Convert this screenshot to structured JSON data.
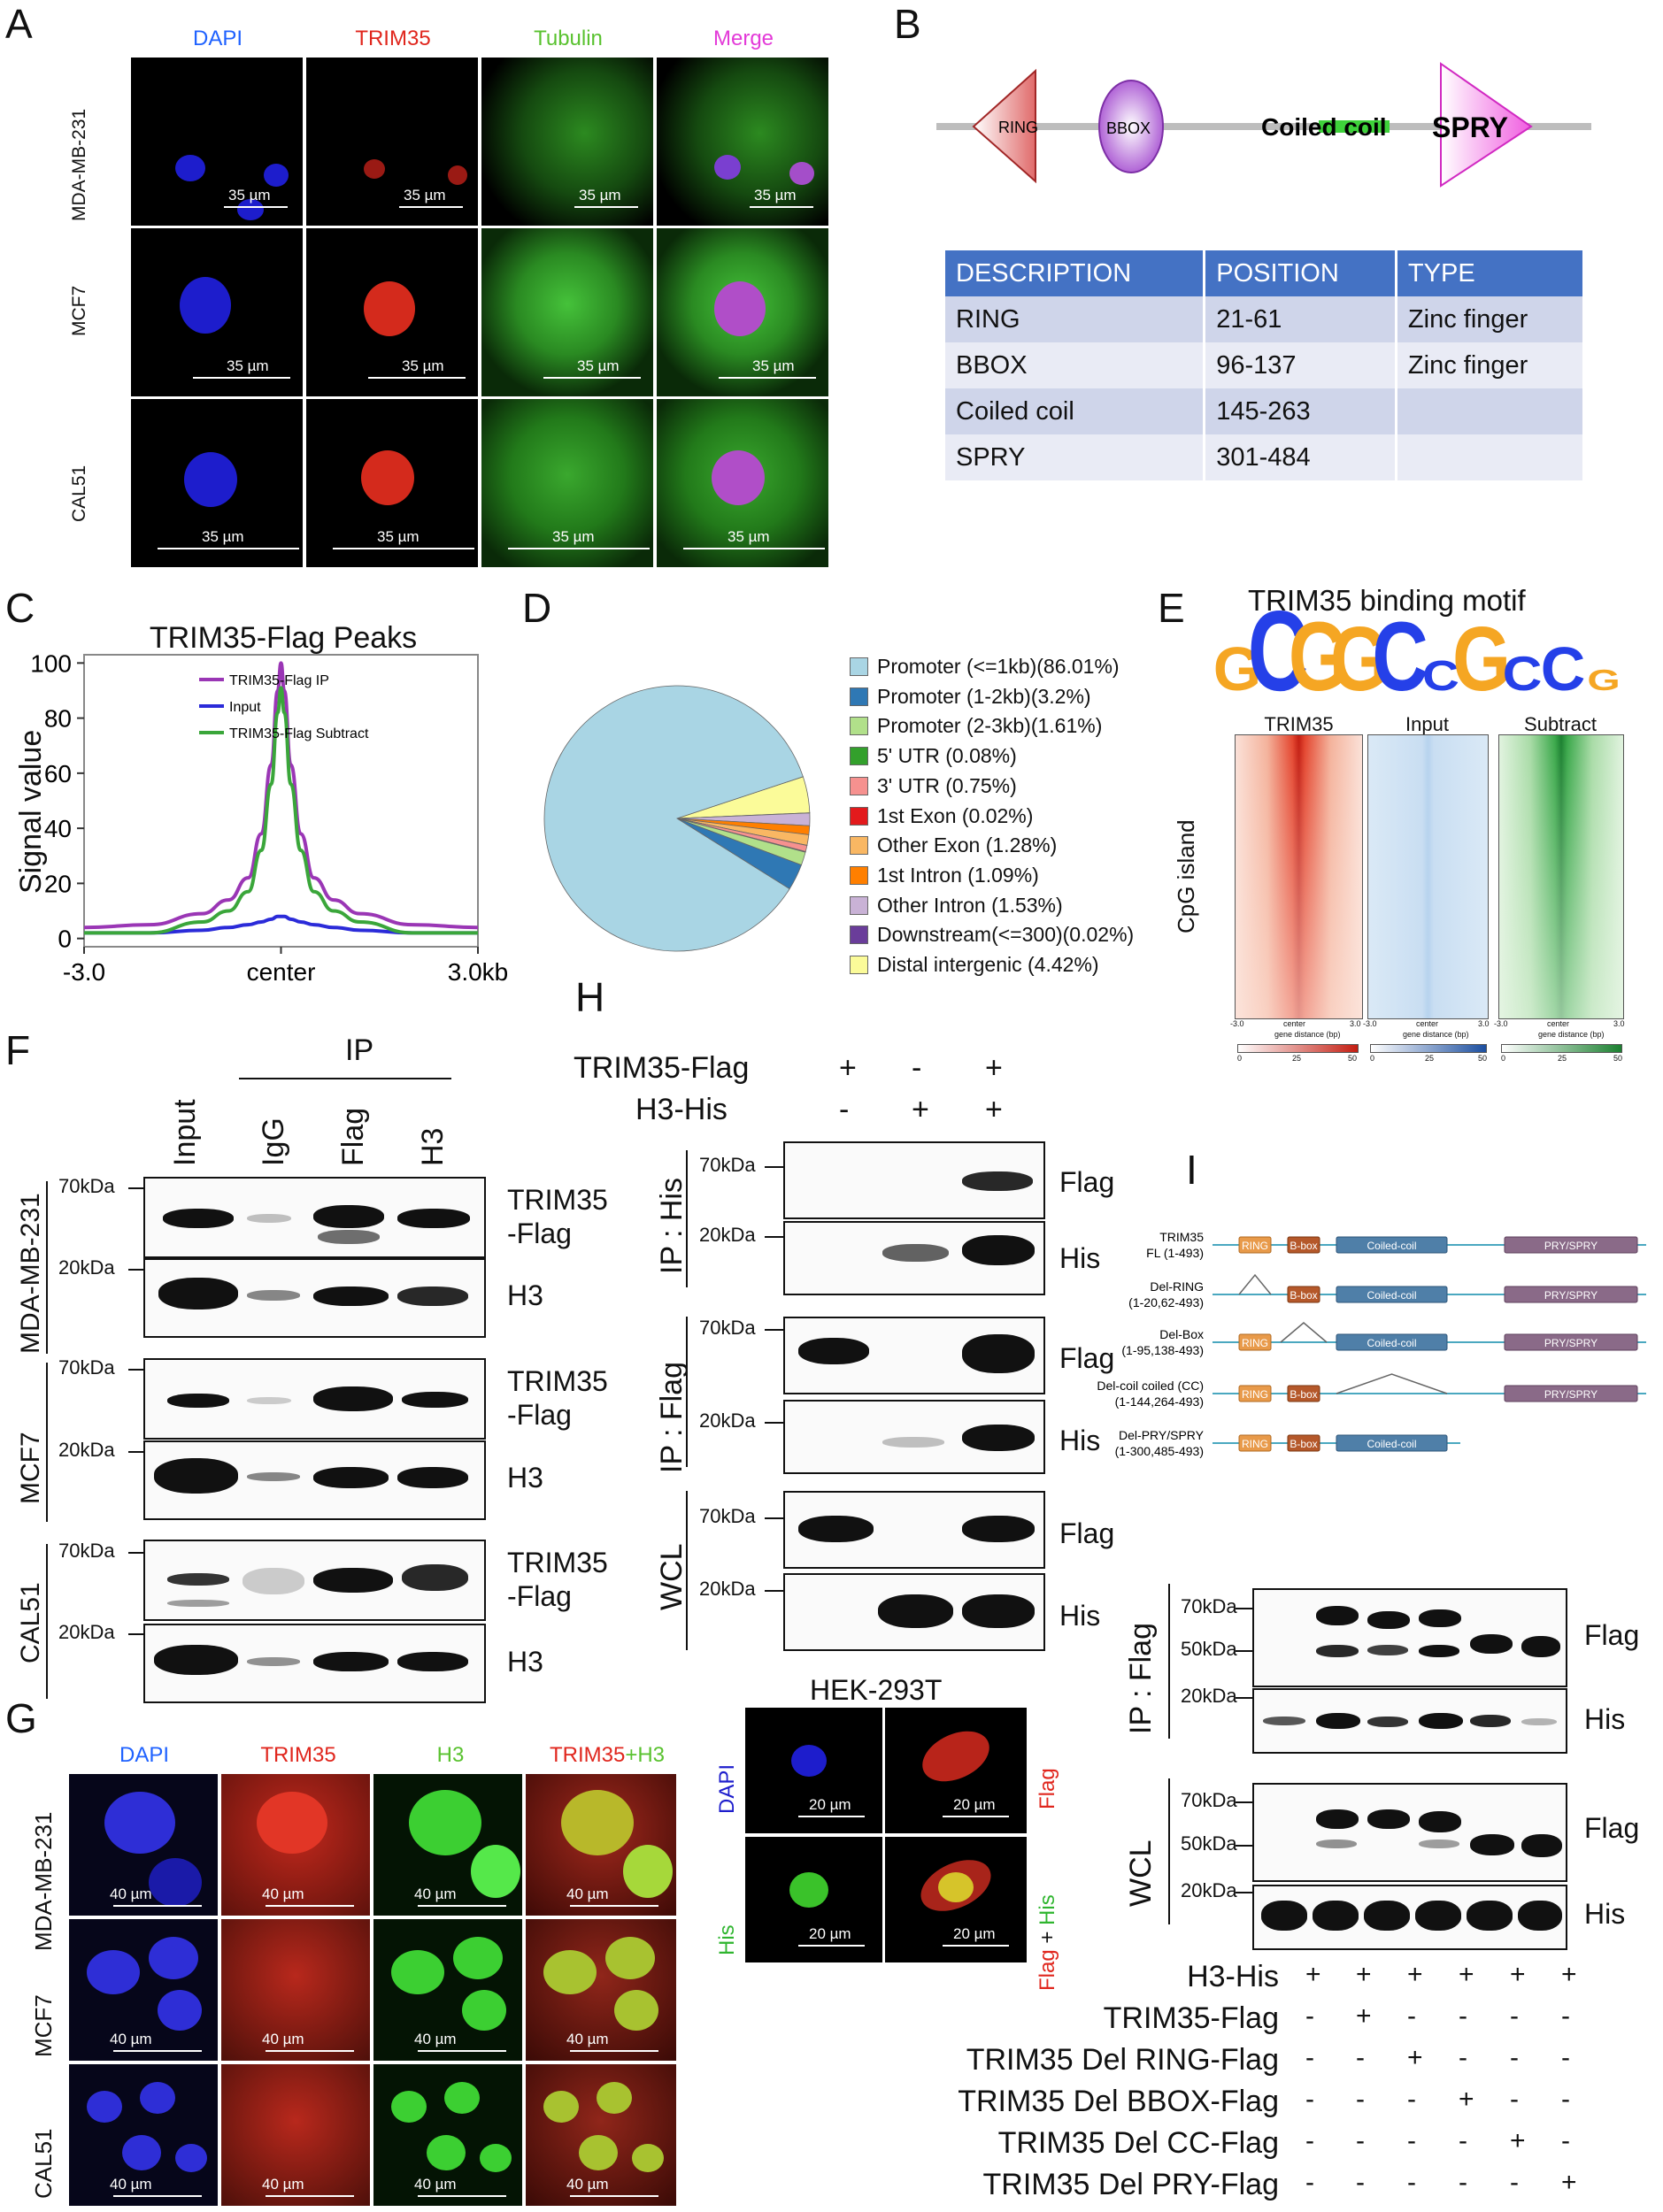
{
  "panel_letters": {
    "a": "A",
    "b": "B",
    "c": "C",
    "d": "D",
    "e": "E",
    "f": "F",
    "g": "G",
    "h": "H",
    "i": "I"
  },
  "panelA": {
    "channels": [
      "DAPI",
      "TRIM35",
      "Tubulin",
      "Merge"
    ],
    "channel_colors": [
      "#1f62ff",
      "#e0261d",
      "#59c22f",
      "#e33ad8"
    ],
    "rows": [
      "MDA-MB-231",
      "MCF7",
      "CAL51"
    ],
    "scale": "35 µm"
  },
  "panelB": {
    "domains": [
      "RING",
      "BBOX",
      "Coiled coil",
      "SPRY"
    ],
    "table": {
      "headers": [
        "DESCRIPTION",
        "POSITION",
        "TYPE"
      ],
      "rows": [
        [
          "RING",
          "21-61",
          "Zinc finger"
        ],
        [
          "BBOX",
          "96-137",
          "Zinc finger"
        ],
        [
          "Coiled coil",
          "145-263",
          ""
        ],
        [
          "SPRY",
          "301-484",
          ""
        ]
      ]
    }
  },
  "chart_data": {
    "type": "line",
    "title": "TRIM35-Flag Peaks",
    "ylabel": "Signal value",
    "ylim": [
      0,
      100
    ],
    "yticks": [
      "0",
      "20",
      "40",
      "60",
      "80",
      "100"
    ],
    "xticks": [
      "-3.0",
      "center",
      "3.0kb"
    ],
    "x": [
      -3.0,
      -2.0,
      -1.2,
      -0.8,
      -0.5,
      -0.3,
      -0.15,
      -0.05,
      0,
      0.05,
      0.15,
      0.3,
      0.5,
      0.8,
      1.2,
      2.0,
      3.0
    ],
    "series": [
      {
        "name": "TRIM35-Flag IP",
        "color": "#9a36b5",
        "values": [
          4,
          5,
          9,
          14,
          22,
          38,
          63,
          90,
          100,
          90,
          63,
          38,
          22,
          14,
          9,
          5,
          4
        ]
      },
      {
        "name": "Input",
        "color": "#2b2bd9",
        "values": [
          2,
          2,
          3,
          4,
          5,
          6,
          7,
          8,
          8,
          8,
          7,
          6,
          5,
          4,
          3,
          2,
          2
        ]
      },
      {
        "name": "TRIM35-Flag Subtract",
        "color": "#3aa63a",
        "values": [
          2,
          2,
          6,
          10,
          17,
          32,
          56,
          82,
          91,
          82,
          56,
          32,
          17,
          10,
          6,
          2,
          2
        ]
      }
    ]
  },
  "panelD": {
    "slices": [
      {
        "label": "Promoter (<=1kb)(86.01%)",
        "value": 86.01,
        "color": "#a9d5e4"
      },
      {
        "label": "Promoter (1-2kb)(3.2%)",
        "value": 3.2,
        "color": "#2f78b4"
      },
      {
        "label": "Promoter (2-3kb)(1.61%)",
        "value": 1.61,
        "color": "#b1e08a"
      },
      {
        "label": "5' UTR (0.08%)",
        "value": 0.08,
        "color": "#33a02c"
      },
      {
        "label": "3' UTR (0.75%)",
        "value": 0.75,
        "color": "#f6918f"
      },
      {
        "label": "1st Exon (0.02%)",
        "value": 0.02,
        "color": "#e31a1c"
      },
      {
        "label": "Other Exon (1.28%)",
        "value": 1.28,
        "color": "#f9b763"
      },
      {
        "label": "1st Intron (1.09%)",
        "value": 1.09,
        "color": "#ff7f00"
      },
      {
        "label": "Other Intron (1.53%)",
        "value": 1.53,
        "color": "#c9b2d6"
      },
      {
        "label": "Downstream(<=300)(0.02%)",
        "value": 0.02,
        "color": "#6a3d9a"
      },
      {
        "label": "Distal intergenic (4.42%)",
        "value": 4.42,
        "color": "#fbfb99"
      }
    ]
  },
  "panelE": {
    "title": "TRIM35 binding motif",
    "motif": [
      "G",
      "C",
      "G",
      "G",
      "C",
      "C",
      "G",
      "C",
      "C",
      "G"
    ],
    "motif_colors": {
      "G": "#f5a623",
      "C": "#2540e8",
      "A": "#2fb52f",
      "T": "#e8262b"
    },
    "heatmaps": [
      {
        "name": "TRIM35",
        "color": "#e0372b"
      },
      {
        "name": "Input",
        "color": "#3b6ec4"
      },
      {
        "name": "Subtract",
        "color": "#1f9a33"
      }
    ],
    "ylabel": "CpG island",
    "xticks": [
      "-3.0",
      "center",
      "3.0"
    ],
    "xlabel": "gene distance (bp)",
    "cbar_ticks": [
      "0",
      "25",
      "50"
    ]
  },
  "panelF": {
    "ip_label": "IP",
    "lanes": [
      "Input",
      "IgG",
      "Flag",
      "H3"
    ],
    "mw": [
      "70kDa",
      "20kDa"
    ],
    "cell_lines": [
      "MDA-MB-231",
      "MCF7",
      "CAL51"
    ],
    "bands": [
      "TRIM35",
      "-Flag",
      "H3"
    ]
  },
  "panelG": {
    "channels": [
      "DAPI",
      "TRIM35",
      "H3",
      "TRIM35",
      "+",
      "H3"
    ],
    "rows": [
      "MDA-MB-231",
      "MCF7",
      "CAL51"
    ],
    "scale": "40 µm"
  },
  "panelH": {
    "conditions": [
      {
        "label": "TRIM35-Flag",
        "values": [
          "+",
          "-",
          "+"
        ]
      },
      {
        "label": "H3-His",
        "values": [
          "-",
          "+",
          "+"
        ]
      }
    ],
    "groups": [
      "IP : His",
      "IP : Flag",
      "WCL"
    ],
    "bands": [
      "Flag",
      "His"
    ],
    "mw": [
      "70kDa",
      "20kDa"
    ],
    "hek": {
      "title": "HEK-293T",
      "labels": [
        "DAPI",
        "Flag",
        "His",
        "Flag",
        "+",
        "His"
      ],
      "scale": "20 µm"
    }
  },
  "panelI": {
    "constructs": [
      {
        "name": "TRIM35",
        "range": "FL (1-493)"
      },
      {
        "name": "Del-RING",
        "range": "(1-20,62-493)"
      },
      {
        "name": "Del-Box",
        "range": "(1-95,138-493)"
      },
      {
        "name": "Del-coil coiled (CC)",
        "range": "(1-144,264-493)"
      },
      {
        "name": "Del-PRY/SPRY",
        "range": "(1-300,485-493)"
      }
    ],
    "domain_labels": [
      "RING",
      "B-box",
      "Coiled-coil",
      "PRY/SPRY"
    ],
    "groups": [
      "IP : Flag",
      "WCL"
    ],
    "mw": [
      "70kDa",
      "50kDa",
      "20kDa"
    ],
    "bands": [
      "Flag",
      "His"
    ],
    "conditions": [
      {
        "label": "H3-His",
        "values": [
          "+",
          "+",
          "+",
          "+",
          "+",
          "+"
        ]
      },
      {
        "label": "TRIM35-Flag",
        "values": [
          "-",
          "+",
          "-",
          "-",
          "-",
          "-"
        ]
      },
      {
        "label": "TRIM35 Del RING-Flag",
        "values": [
          "-",
          "-",
          "+",
          "-",
          "-",
          "-"
        ]
      },
      {
        "label": "TRIM35 Del BBOX-Flag",
        "values": [
          "-",
          "-",
          "-",
          "+",
          "-",
          "-"
        ]
      },
      {
        "label": "TRIM35 Del CC-Flag",
        "values": [
          "-",
          "-",
          "-",
          "-",
          "+",
          "-"
        ]
      },
      {
        "label": "TRIM35 Del PRY-Flag",
        "values": [
          "-",
          "-",
          "-",
          "-",
          "-",
          "+"
        ]
      }
    ]
  }
}
